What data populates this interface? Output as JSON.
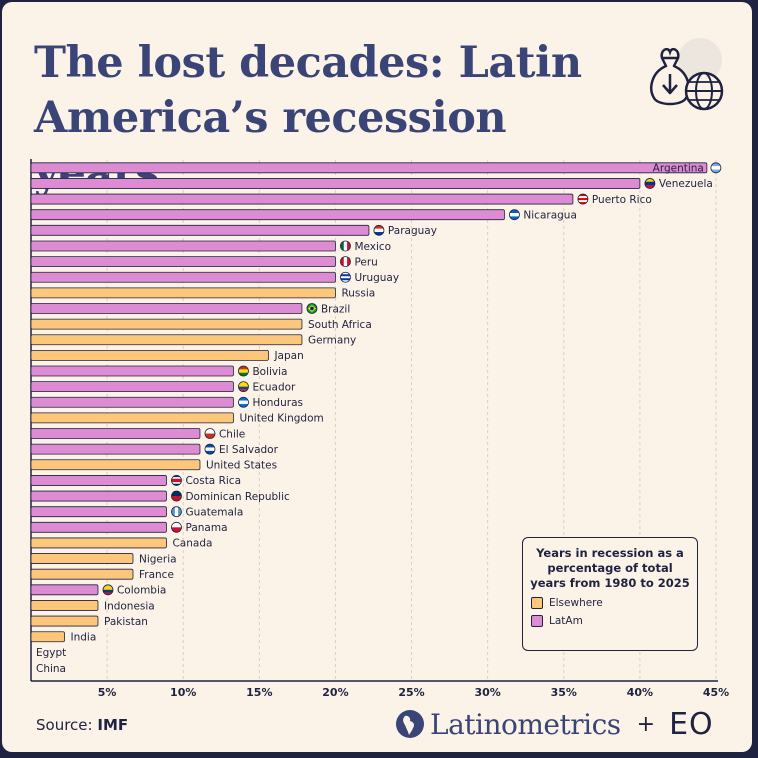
{
  "title": "The lost decades: Latin America’s recession years",
  "source_label": "Source:",
  "source_value": "IMF",
  "brand": {
    "name": "Latinometrics",
    "plus": "+",
    "partner": "EO"
  },
  "legend": {
    "title": "Years in recession as a percentage of total years from 1980 to 2025",
    "items": [
      {
        "label": "Elsewhere",
        "color": "#fcc77a"
      },
      {
        "label": "LatAm",
        "color": "#dd8bd3"
      }
    ]
  },
  "colors": {
    "latam": "#dd8bd3",
    "elsewhere": "#fcc77a",
    "ink": "#1f2240",
    "title": "#3b4477",
    "background": "#fbf3e7"
  },
  "chart_data": {
    "type": "bar",
    "orientation": "horizontal",
    "xlim": [
      0,
      45
    ],
    "xticks": [
      5,
      10,
      15,
      20,
      25,
      30,
      35,
      40,
      45
    ],
    "xtick_labels": [
      "5%",
      "10%",
      "15%",
      "20%",
      "25%",
      "30%",
      "35%",
      "40%",
      "45%"
    ],
    "grid": "vertical dashed",
    "bars": [
      {
        "country": "Argentina",
        "value": 44.4,
        "group": "LatAm",
        "flag": "argentina"
      },
      {
        "country": "Venezuela",
        "value": 40.0,
        "group": "LatAm",
        "flag": "venezuela"
      },
      {
        "country": "Puerto Rico",
        "value": 35.6,
        "group": "LatAm",
        "flag": "puerto-rico"
      },
      {
        "country": "Nicaragua",
        "value": 31.1,
        "group": "LatAm",
        "flag": "nicaragua"
      },
      {
        "country": "Paraguay",
        "value": 22.2,
        "group": "LatAm",
        "flag": "paraguay"
      },
      {
        "country": "Mexico",
        "value": 20.0,
        "group": "LatAm",
        "flag": "mexico"
      },
      {
        "country": "Peru",
        "value": 20.0,
        "group": "LatAm",
        "flag": "peru"
      },
      {
        "country": "Uruguay",
        "value": 20.0,
        "group": "LatAm",
        "flag": "uruguay"
      },
      {
        "country": "Russia",
        "value": 20.0,
        "group": "Elsewhere"
      },
      {
        "country": "Brazil",
        "value": 17.8,
        "group": "LatAm",
        "flag": "brazil"
      },
      {
        "country": "South Africa",
        "value": 17.8,
        "group": "Elsewhere"
      },
      {
        "country": "Germany",
        "value": 17.8,
        "group": "Elsewhere"
      },
      {
        "country": "Japan",
        "value": 15.6,
        "group": "Elsewhere"
      },
      {
        "country": "Bolivia",
        "value": 13.3,
        "group": "LatAm",
        "flag": "bolivia"
      },
      {
        "country": "Ecuador",
        "value": 13.3,
        "group": "LatAm",
        "flag": "ecuador"
      },
      {
        "country": "Honduras",
        "value": 13.3,
        "group": "LatAm",
        "flag": "honduras"
      },
      {
        "country": "United Kingdom",
        "value": 13.3,
        "group": "Elsewhere"
      },
      {
        "country": "Chile",
        "value": 11.1,
        "group": "LatAm",
        "flag": "chile"
      },
      {
        "country": "El Salvador",
        "value": 11.1,
        "group": "LatAm",
        "flag": "el-salvador"
      },
      {
        "country": "United States",
        "value": 11.1,
        "group": "Elsewhere"
      },
      {
        "country": "Costa Rica",
        "value": 8.9,
        "group": "LatAm",
        "flag": "costa-rica"
      },
      {
        "country": "Dominican Republic",
        "value": 8.9,
        "group": "LatAm",
        "flag": "dominican-republic"
      },
      {
        "country": "Guatemala",
        "value": 8.9,
        "group": "LatAm",
        "flag": "guatemala"
      },
      {
        "country": "Panama",
        "value": 8.9,
        "group": "LatAm",
        "flag": "panama"
      },
      {
        "country": "Canada",
        "value": 8.9,
        "group": "Elsewhere"
      },
      {
        "country": "Nigeria",
        "value": 6.7,
        "group": "Elsewhere"
      },
      {
        "country": "France",
        "value": 6.7,
        "group": "Elsewhere"
      },
      {
        "country": "Colombia",
        "value": 4.4,
        "group": "LatAm",
        "flag": "colombia"
      },
      {
        "country": "Indonesia",
        "value": 4.4,
        "group": "Elsewhere"
      },
      {
        "country": "Pakistan",
        "value": 4.4,
        "group": "Elsewhere"
      },
      {
        "country": "India",
        "value": 2.2,
        "group": "Elsewhere"
      },
      {
        "country": "Egypt",
        "value": 0,
        "group": "Elsewhere"
      },
      {
        "country": "China",
        "value": 0,
        "group": "Elsewhere"
      }
    ]
  }
}
